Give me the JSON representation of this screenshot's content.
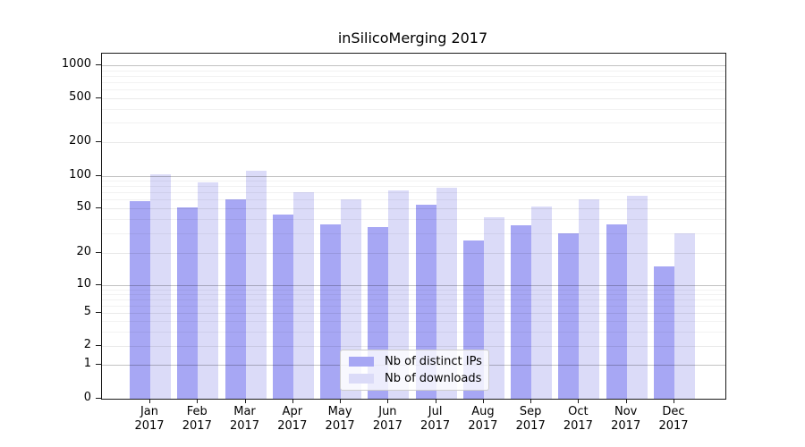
{
  "chart_data": {
    "type": "bar",
    "title": "inSilicoMerging 2017",
    "categories": [
      "Jan",
      "Feb",
      "Mar",
      "Apr",
      "May",
      "Jun",
      "Jul",
      "Aug",
      "Sep",
      "Oct",
      "Nov",
      "Dec"
    ],
    "xtick_year_line": "2017",
    "series": [
      {
        "name": "Nb of distinct IPs",
        "color": "#a7a7f4",
        "values": [
          58,
          51,
          60,
          44,
          36,
          34,
          54,
          26,
          35,
          30,
          36,
          15
        ]
      },
      {
        "name": "Nb of downloads",
        "color": "#dbdbf8",
        "values": [
          104,
          87,
          112,
          70,
          60,
          73,
          77,
          41,
          52,
          60,
          65,
          30
        ]
      }
    ],
    "yaxis": {
      "scale": "symlog",
      "tick_values": [
        0,
        1,
        2,
        5,
        10,
        20,
        50,
        100,
        200,
        500,
        1000
      ],
      "tick_labels": [
        "0",
        "1",
        "2",
        "5",
        "10",
        "20",
        "50",
        "100",
        "200",
        "500",
        "1000"
      ],
      "ylim": [
        0,
        1150
      ]
    },
    "grid": true,
    "legend": {
      "position": "inside-bottom-center"
    }
  }
}
